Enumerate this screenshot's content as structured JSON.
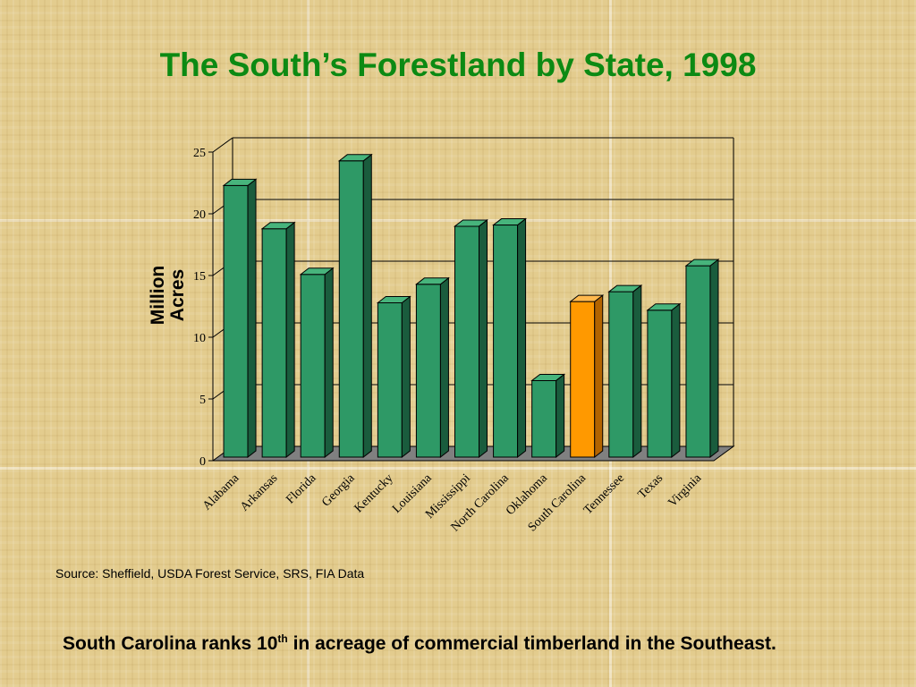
{
  "slide": {
    "title": "The South’s Forestland by State, 1998",
    "source": "Source:  Sheffield, USDA Forest Service, SRS, FIA Data",
    "note_before": "South Carolina ranks 10",
    "note_sup": "th",
    "note_after": " in acreage of commercial timberland in the Southeast."
  },
  "chart_data": {
    "type": "bar",
    "title": "",
    "xlabel": "",
    "ylabel_lines": [
      "Million",
      "Acres"
    ],
    "ylim": [
      0,
      25
    ],
    "yticks": [
      0,
      5,
      10,
      15,
      20,
      25
    ],
    "grid": true,
    "categories": [
      "Alabama",
      "Arkansas",
      "Florida",
      "Georgia",
      "Kentucky",
      "Louisiana",
      "Mississippi",
      "North Carolina",
      "Oklahoma",
      "South Carolina",
      "Tennessee",
      "Texas",
      "Virginia"
    ],
    "values": [
      22.0,
      18.5,
      14.8,
      24.0,
      12.5,
      14.0,
      18.7,
      18.8,
      6.2,
      12.6,
      13.4,
      11.9,
      15.5
    ],
    "highlight_category": "South Carolina",
    "colors": {
      "bar": "#2e9966",
      "bar_side": "#1a5c3d",
      "bar_top": "#47b47c",
      "highlight": "#ff9900",
      "highlight_side": "#b36400",
      "highlight_top": "#ffb84d",
      "floor": "#808080"
    }
  }
}
